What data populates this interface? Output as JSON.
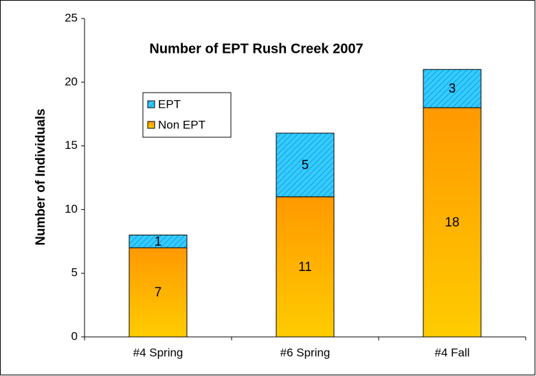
{
  "chart_data": {
    "type": "stacked_bar",
    "title": "Number of EPT Rush Creek 2007",
    "y_label": "Number of Individuals",
    "categories": [
      "#4 Spring",
      "#6 Spring",
      "#4 Fall"
    ],
    "series": [
      {
        "name": "Non EPT",
        "color": "#ff9900",
        "values": [
          7,
          11,
          18
        ]
      },
      {
        "name": "EPT",
        "color": "#33ccff",
        "values": [
          1,
          5,
          3
        ]
      }
    ],
    "ylim": [
      0,
      25
    ],
    "yticks": [
      0,
      5,
      10,
      15,
      20,
      25
    ],
    "legend": "upper left"
  }
}
